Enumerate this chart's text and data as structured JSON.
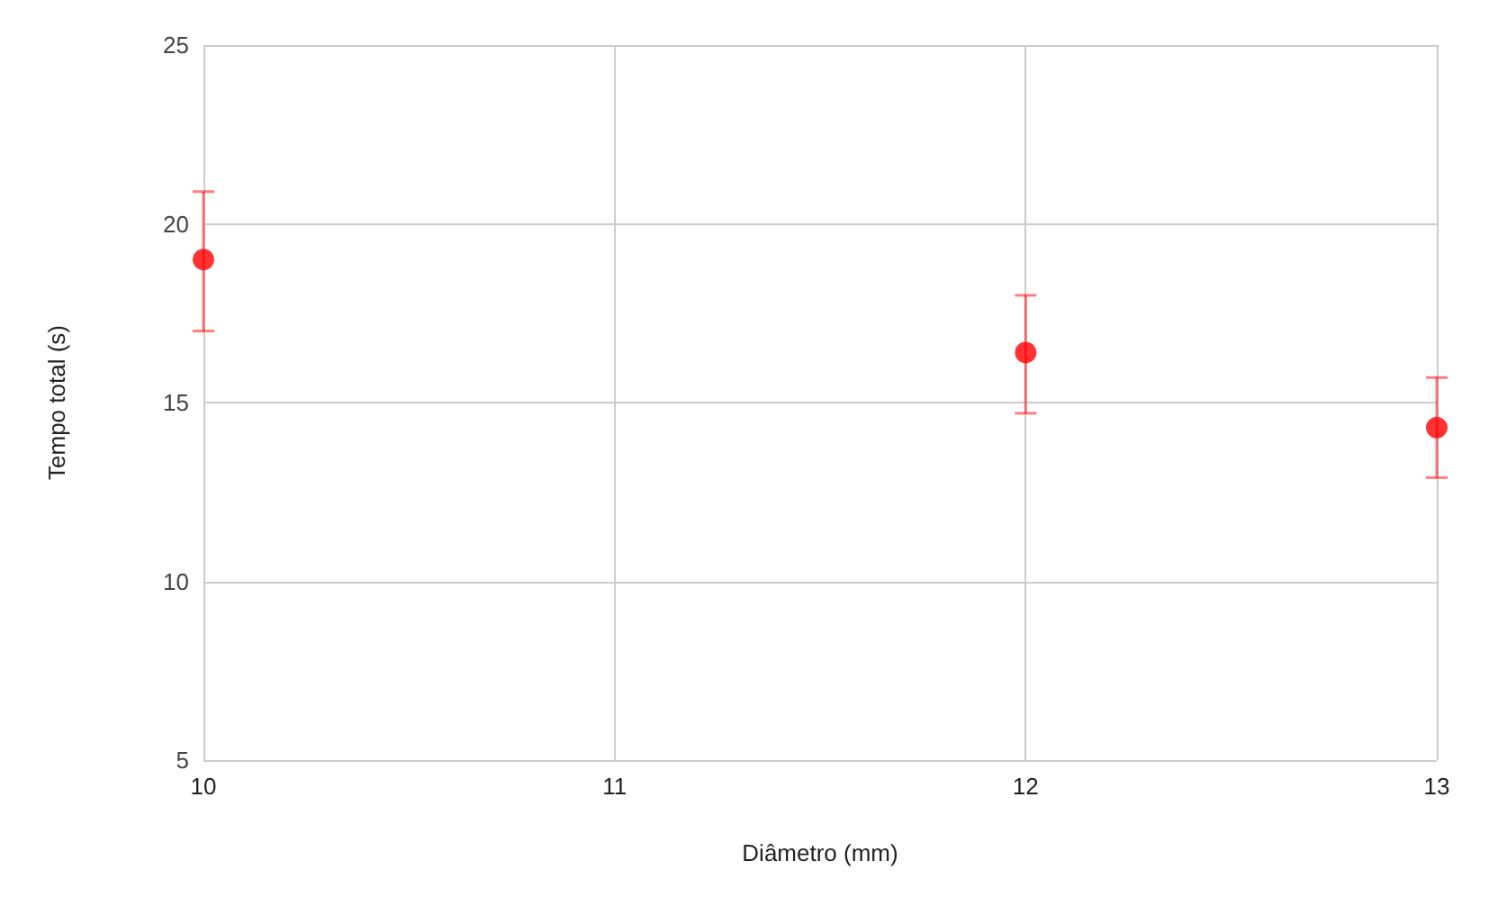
{
  "chart_data": {
    "type": "scatter",
    "xlabel": "Diâmetro (mm)",
    "ylabel": "Tempo total (s)",
    "x": [
      10,
      12,
      13
    ],
    "series": [
      {
        "color": "#ff0000",
        "values": [
          19,
          16.4,
          14.3
        ],
        "errors": [
          [
            17.0,
            20.9
          ],
          [
            14.7,
            18.0
          ],
          [
            12.9,
            15.7
          ]
        ]
      }
    ],
    "xlim": [
      10,
      13
    ],
    "xticks": [
      10,
      11,
      12,
      13
    ],
    "ylim": [
      5,
      25
    ],
    "yticks": [
      5,
      10,
      15,
      20,
      25
    ],
    "grid": true,
    "marker": "circle"
  }
}
